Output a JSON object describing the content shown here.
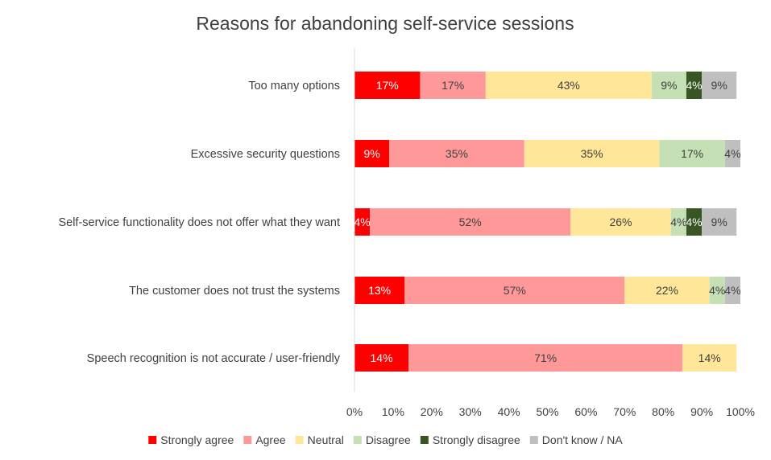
{
  "chart_data": {
    "type": "bar",
    "orientation": "horizontal",
    "stacked": "percent",
    "title": "Reasons for abandoning self-service sessions",
    "xlabel": "",
    "ylabel": "",
    "xlim": [
      0,
      100
    ],
    "x_ticks": [
      "0%",
      "10%",
      "20%",
      "30%",
      "40%",
      "50%",
      "60%",
      "70%",
      "80%",
      "90%",
      "100%"
    ],
    "categories": [
      "Too many options",
      "Excessive security questions",
      "Self-service functionality does not offer what they want",
      "The customer does not trust the systems",
      "Speech recognition is not accurate / user-friendly"
    ],
    "series": [
      {
        "name": "Strongly agree",
        "color": "#ff0000",
        "label_color": "#ffffff",
        "values": [
          17,
          9,
          4,
          13,
          14
        ],
        "labels": [
          "17%",
          "9%",
          "4%",
          "13%",
          "14%"
        ]
      },
      {
        "name": "Agree",
        "color": "#ff9999",
        "label_color": "#404040",
        "values": [
          17,
          35,
          52,
          57,
          71
        ],
        "labels": [
          "17%",
          "35%",
          "52%",
          "57%",
          "71%"
        ]
      },
      {
        "name": "Neutral",
        "color": "#ffe699",
        "label_color": "#404040",
        "values": [
          43,
          35,
          26,
          22,
          14
        ],
        "labels": [
          "43%",
          "35%",
          "26%",
          "22%",
          "14%"
        ]
      },
      {
        "name": "Disagree",
        "color": "#c5e0b4",
        "label_color": "#404040",
        "values": [
          9,
          17,
          4,
          4,
          0
        ],
        "labels": [
          "9%",
          "17%",
          "4%",
          "4%",
          ""
        ]
      },
      {
        "name": "Strongly disagree",
        "color": "#375623",
        "label_color": "#ffffff",
        "values": [
          4,
          0,
          4,
          0,
          0
        ],
        "labels": [
          "4%",
          "",
          "4%",
          "",
          ""
        ]
      },
      {
        "name": "Don't know / NA",
        "color": "#bfbfbf",
        "label_color": "#404040",
        "values": [
          9,
          4,
          9,
          4,
          0
        ],
        "labels": [
          "9%",
          "4%",
          "9%",
          "4%",
          ""
        ]
      }
    ],
    "legend": "bottom",
    "grid": false,
    "axis_line_color": "#d9d9d9"
  }
}
